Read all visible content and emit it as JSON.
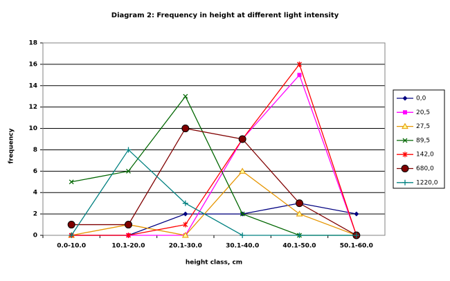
{
  "chart_data": {
    "type": "line",
    "title": "Diagram 2: Frequency in height at different light intensity",
    "x_label": "height class, cm",
    "y_label": "frequency",
    "categories": [
      "0.0-10.0",
      "10.1-20.0",
      "20.1-30.0",
      "30.1-40.0",
      "40.1-50.0",
      "50.1-60.0"
    ],
    "ylim": [
      0,
      18
    ],
    "yticks": [
      0,
      2,
      4,
      6,
      8,
      10,
      12,
      14,
      16,
      18
    ],
    "grid": true,
    "legend": "right",
    "series": [
      {
        "name": "0,0",
        "color": "#000080",
        "marker": "diamond",
        "values": [
          0,
          0,
          2,
          2,
          3,
          2
        ]
      },
      {
        "name": "20,5",
        "color": "#ff00ff",
        "marker": "square",
        "values": [
          0,
          0,
          0,
          9,
          15,
          0
        ]
      },
      {
        "name": "27,5",
        "color": "#e69500",
        "marker": "triangle",
        "values": [
          0,
          1,
          0,
          6,
          2,
          0
        ]
      },
      {
        "name": "89,5",
        "color": "#006600",
        "marker": "x",
        "values": [
          5,
          6,
          13,
          2,
          0,
          0
        ]
      },
      {
        "name": "142,0",
        "color": "#ff0000",
        "marker": "star",
        "values": [
          0,
          0,
          1,
          9,
          16,
          0
        ]
      },
      {
        "name": "680,0",
        "color": "#800000",
        "marker": "circle",
        "values": [
          1,
          1,
          10,
          9,
          3,
          0
        ]
      },
      {
        "name": "1220,0",
        "color": "#008080",
        "marker": "plus",
        "values": [
          0,
          8,
          3,
          0,
          0,
          0
        ]
      }
    ]
  }
}
